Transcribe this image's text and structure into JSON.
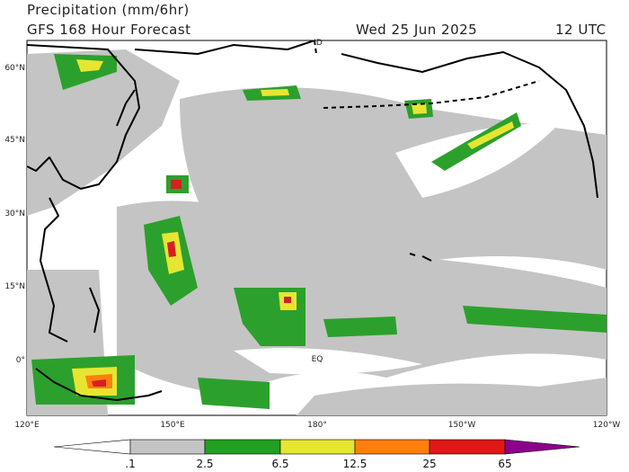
{
  "header": {
    "title": "Precipitation (mm/6hr)",
    "subtitle": "GFS 168 Hour Forecast",
    "date": "Wed 25 Jun 2025",
    "time": "12 UTC"
  },
  "map": {
    "lat_labels": [
      "60°N",
      "45°N",
      "30°N",
      "15°N",
      "0°"
    ],
    "lon_labels": [
      "120°E",
      "150°E",
      "180°",
      "150°W",
      "120°W"
    ],
    "annotations": [
      "ID",
      "EQ"
    ]
  },
  "legend": {
    "labels": [
      ".1",
      "2.5",
      "6.5",
      "12.5",
      "25",
      "65"
    ]
  }
}
